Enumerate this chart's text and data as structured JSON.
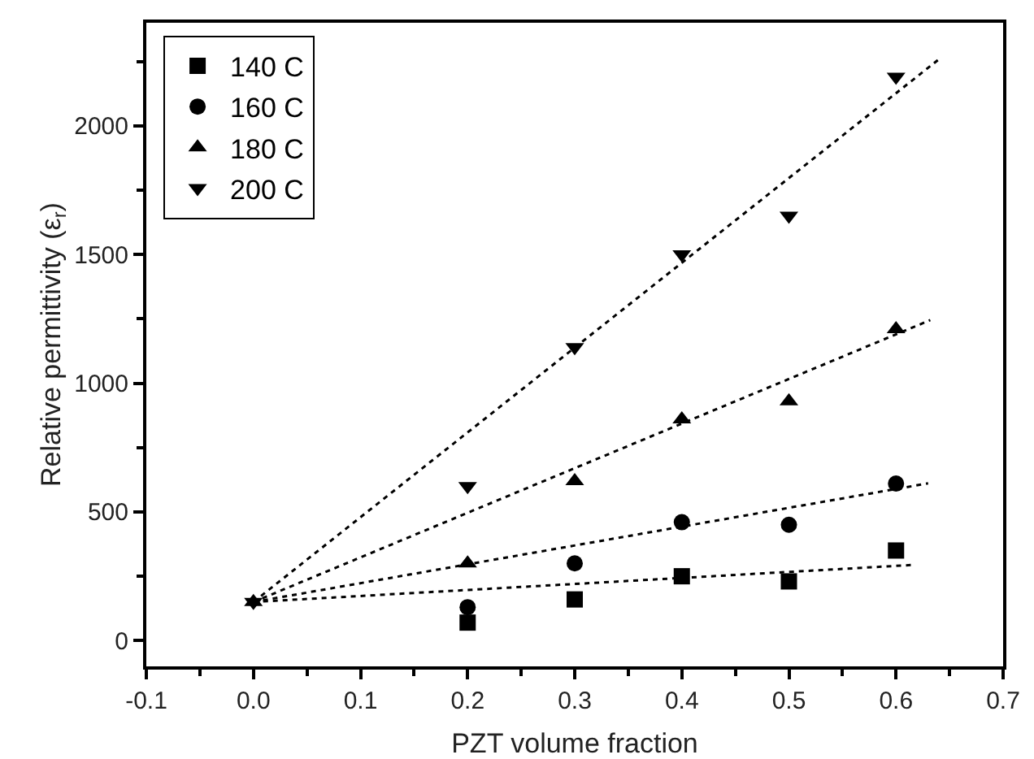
{
  "chart_data": {
    "type": "scatter",
    "xlabel": "PZT volume fraction",
    "ylabel": "Relative permittivity (ε$_{r}$)",
    "x": [
      0,
      0.2,
      0.3,
      0.4,
      0.5,
      0.6
    ],
    "xlim": [
      -0.1,
      0.7
    ],
    "xticks": [
      {
        "value": -0.1,
        "label": "-0.1"
      },
      {
        "value": 0,
        "label": "0.0"
      },
      0.1,
      0.2,
      0.3,
      0.4,
      0.5,
      0.6,
      0.7
    ],
    "ylim": [
      -100,
      2400
    ],
    "yticks": [
      0,
      500,
      1000,
      1500,
      2000
    ],
    "grid": false,
    "legend": "top left",
    "series": [
      {
        "name": "140 C",
        "color": "#000000",
        "marker": "square",
        "values": [
          null,
          70,
          160,
          250,
          230,
          350
        ]
      },
      {
        "name": "160 C",
        "color": "#000000",
        "marker": "circle",
        "values": [
          null,
          130,
          300,
          460,
          450,
          610
        ]
      },
      {
        "name": "180 C",
        "color": "#000000",
        "marker": "triangle",
        "values": [
          150,
          300,
          620,
          860,
          930,
          1210
        ]
      },
      {
        "name": "200 C",
        "color": "#000000",
        "marker": "triangle-down",
        "values": [
          150,
          600,
          1140,
          1500,
          1650,
          2190
        ]
      },
      {
        "type": "line",
        "color": "#000000",
        "line_style": "dotted",
        "marker": "none",
        "x": [
          0,
          0.616
        ],
        "values": [
          150,
          294
        ]
      },
      {
        "type": "line",
        "color": "#000000",
        "line_style": "dotted",
        "marker": "none",
        "x": [
          0,
          0.63
        ],
        "values": [
          150,
          611
        ]
      },
      {
        "type": "line",
        "color": "#000000",
        "line_style": "dotted",
        "marker": "none",
        "x": [
          0,
          0.632
        ],
        "values": [
          150,
          1245
        ]
      },
      {
        "type": "line",
        "color": "#000000",
        "line_style": "dotted",
        "marker": "none",
        "x": [
          0,
          0.64
        ],
        "values": [
          150,
          2258
        ]
      }
    ]
  }
}
